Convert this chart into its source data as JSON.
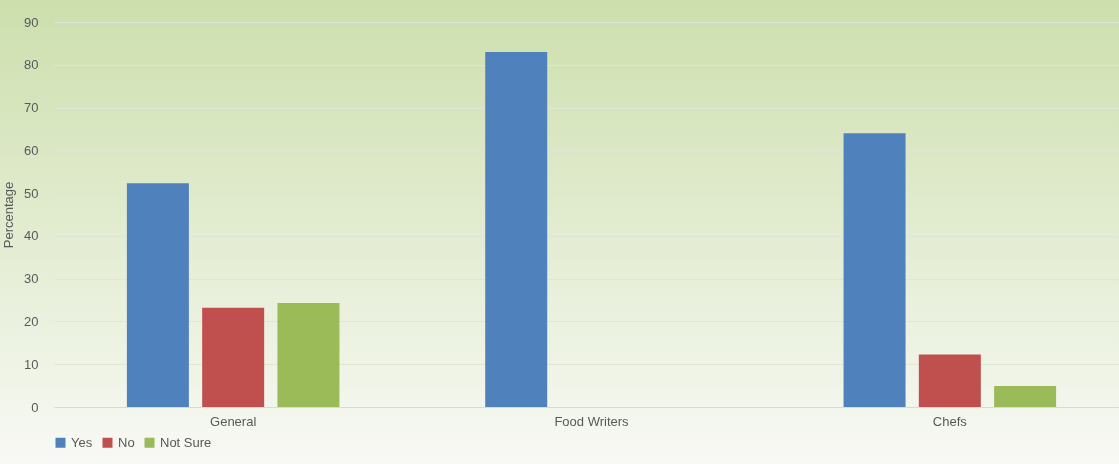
{
  "chart_data": {
    "type": "bar",
    "ylabel": "Percentage",
    "categories": [
      "General",
      "Food Writers",
      "Chefs"
    ],
    "series": [
      {
        "name": "Yes",
        "color": "#4f81bd",
        "values": [
          52.3,
          83,
          64
        ]
      },
      {
        "name": "No",
        "color": "#c0504d",
        "values": [
          23.2,
          null,
          12.3
        ]
      },
      {
        "name": "Not Sure",
        "color": "#9bbb59",
        "values": [
          24.3,
          null,
          4.9
        ]
      }
    ],
    "ylim": [
      0,
      90
    ],
    "yticks": [
      0,
      10,
      20,
      30,
      40,
      50,
      60,
      70,
      80,
      90
    ],
    "grid": "y",
    "legend": "bottom"
  }
}
